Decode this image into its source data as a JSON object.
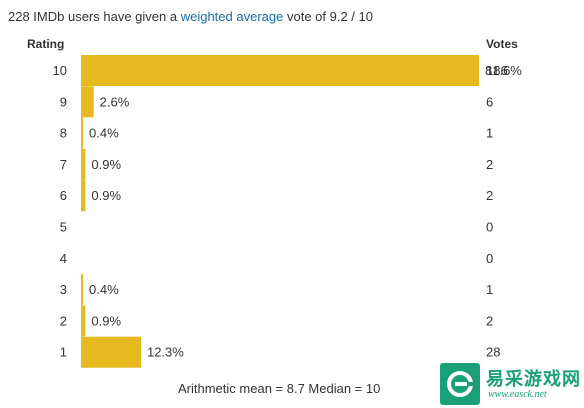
{
  "summary": {
    "prefix": "228 IMDb users have given a ",
    "link": "weighted average",
    "suffix": " vote of 9.2 / 10"
  },
  "headers": {
    "rating": "Rating",
    "votes": "Votes"
  },
  "chart_data": {
    "type": "bar",
    "orientation": "horizontal",
    "categories": [
      "10",
      "9",
      "8",
      "7",
      "6",
      "5",
      "4",
      "3",
      "2",
      "1"
    ],
    "values": [
      81.6,
      2.6,
      0.4,
      0.9,
      0.9,
      0,
      0,
      0.4,
      0.9,
      12.3
    ],
    "value_labels": [
      "81.6%",
      "2.6%",
      "0.4%",
      "0.9%",
      "0.9%",
      "",
      "",
      "0.4%",
      "0.9%",
      "12.3%"
    ],
    "votes": [
      186,
      6,
      1,
      2,
      2,
      0,
      0,
      1,
      2,
      28
    ],
    "bar_color": "#e6b91e",
    "grid": false
  },
  "footer": {
    "text": "Arithmetic mean = 8.7   Median = 10"
  },
  "logo": {
    "title": "易采游戏网",
    "url": "www.easck.net"
  }
}
